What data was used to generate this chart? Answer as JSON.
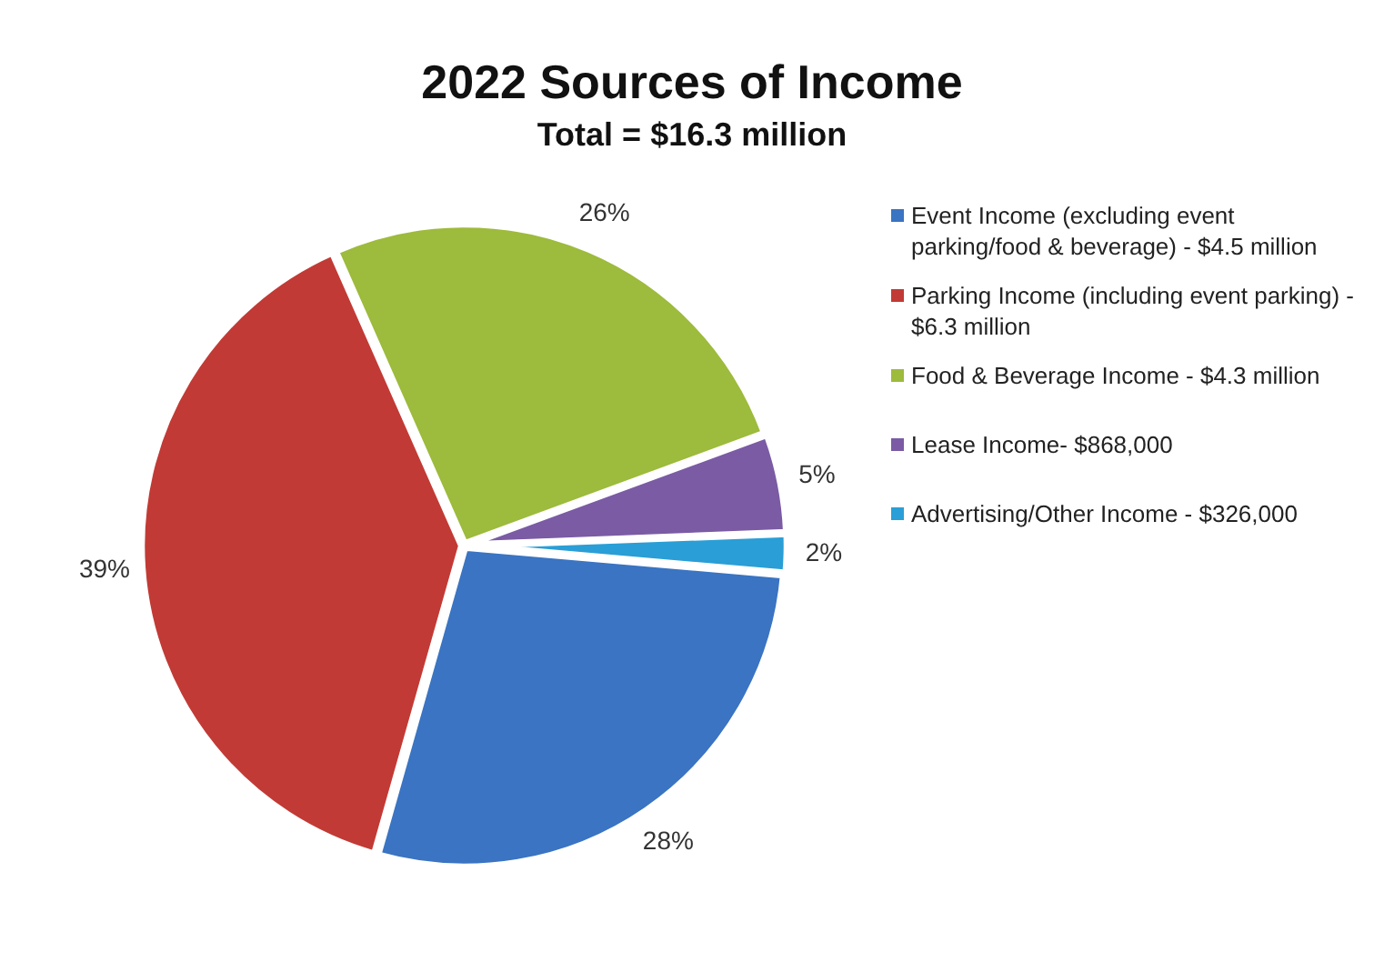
{
  "chart_data": {
    "type": "pie",
    "title": "2022 Sources of Income",
    "subtitle": "Total = $16.3 million",
    "categories": [
      "Event Income (excluding event parking/food & beverage) - $4.5 million",
      "Parking Income (including event parking) - $6.3 million",
      "Food & Beverage Income - $4.3 million",
      "Lease Income- $868,000",
      "Advertising/Other Income - $326,000"
    ],
    "values": [
      28,
      39,
      26,
      5,
      2
    ],
    "value_labels": [
      "28%",
      "39%",
      "26%",
      "5%",
      "2%"
    ],
    "colors": [
      "#3a74c2",
      "#c23a35",
      "#9dbb3c",
      "#7a5ba4",
      "#2a9ed6"
    ],
    "legend": "right"
  }
}
